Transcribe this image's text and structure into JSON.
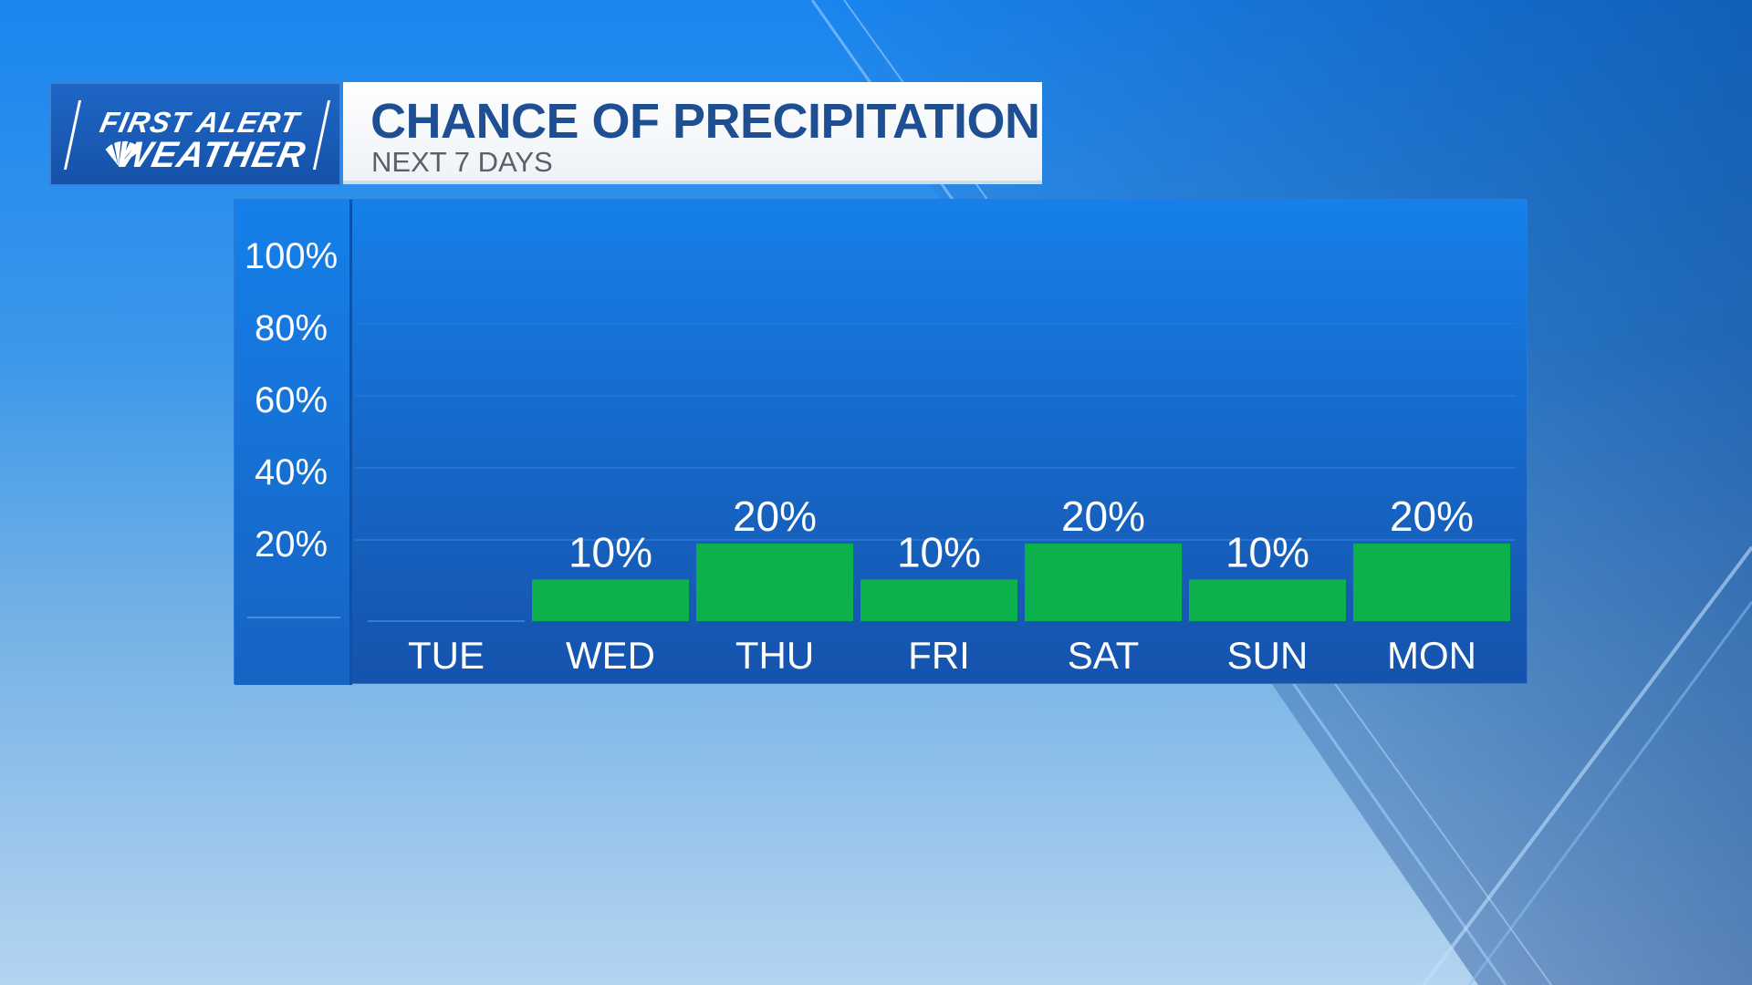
{
  "logo": {
    "line1": "FIRST ALERT",
    "line2": "WEATHER",
    "icon": "peacock-icon"
  },
  "header": {
    "title": "CHANCE OF PRECIPITATION",
    "subtitle": "NEXT 7 DAYS"
  },
  "colors": {
    "bar": "#0db14b",
    "title": "#1d4f92",
    "panel": "#1666c6"
  },
  "chart_data": {
    "type": "bar",
    "categories": [
      "TUE",
      "WED",
      "THU",
      "FRI",
      "SAT",
      "SUN",
      "MON"
    ],
    "values": [
      0,
      10,
      20,
      10,
      20,
      10,
      20
    ],
    "value_labels": [
      "",
      "10%",
      "20%",
      "10%",
      "20%",
      "10%",
      "20%"
    ],
    "ytick_labels": [
      "20%",
      "40%",
      "60%",
      "80%",
      "100%"
    ],
    "yticks": [
      20,
      40,
      60,
      80,
      100
    ],
    "title": "CHANCE OF PRECIPITATION",
    "subtitle": "NEXT 7 DAYS",
    "xlabel": "",
    "ylabel": "",
    "ylim": [
      0,
      100
    ],
    "grid": true,
    "legend": "none"
  }
}
